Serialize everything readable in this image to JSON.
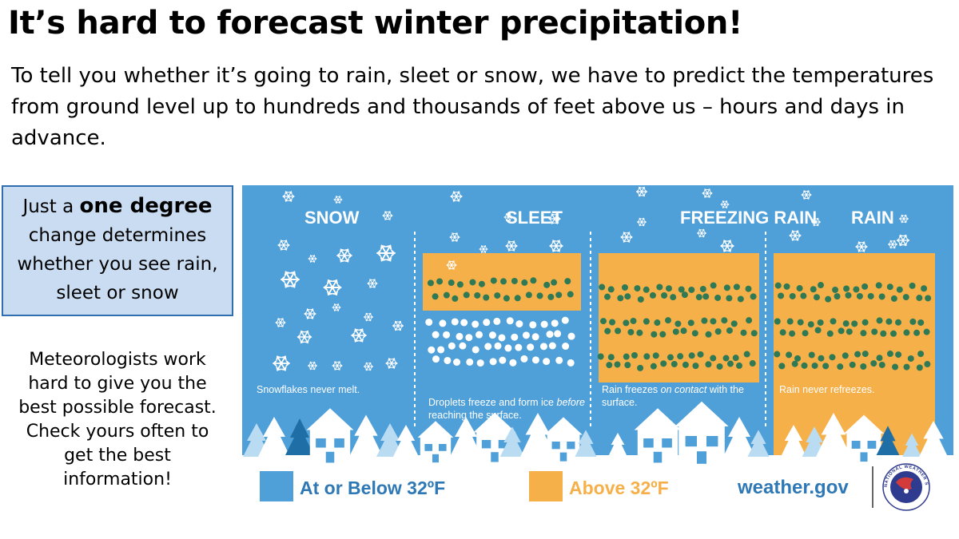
{
  "title": "It’s hard to forecast winter precipitation!",
  "intro": "To tell you whether it’s going to rain, sleet or snow, we have to predict the temperatures from ground level up to hundreds and thousands of feet above us – hours and days in advance.",
  "callout": {
    "prefix": "Just a",
    "emphasis": "one degree",
    "rest": "change determines whether you see rain, sleet or snow"
  },
  "note": "Meteorologists work hard to give you the best possible forecast. Check yours often to get the best information!",
  "panels": [
    {
      "title": "SNOW",
      "caption": "Snowflakes never melt."
    },
    {
      "title": "SLEET",
      "caption_html": "Droplets freeze and form ice <i>before</i> reaching the surface."
    },
    {
      "title": "FREEZING RAIN",
      "caption_html": "Rain freezes <i>on contact</i> with the surface."
    },
    {
      "title": "RAIN",
      "caption": "Rain never refreezes."
    }
  ],
  "legend": {
    "cold": "At or Below 32ºF",
    "warm": "Above 32ºF"
  },
  "source": "weather.gov",
  "logo_text": "NATIONAL WEATHER SERVICE",
  "colors": {
    "sky": "#4f9fd9",
    "warm": "#f6b04a",
    "drop": "#2f7a55",
    "tree_light": "#b9dcf3",
    "tree_white": "#ffffff",
    "tree_dark": "#1f6ea5",
    "text_blue": "#2e78b5"
  }
}
